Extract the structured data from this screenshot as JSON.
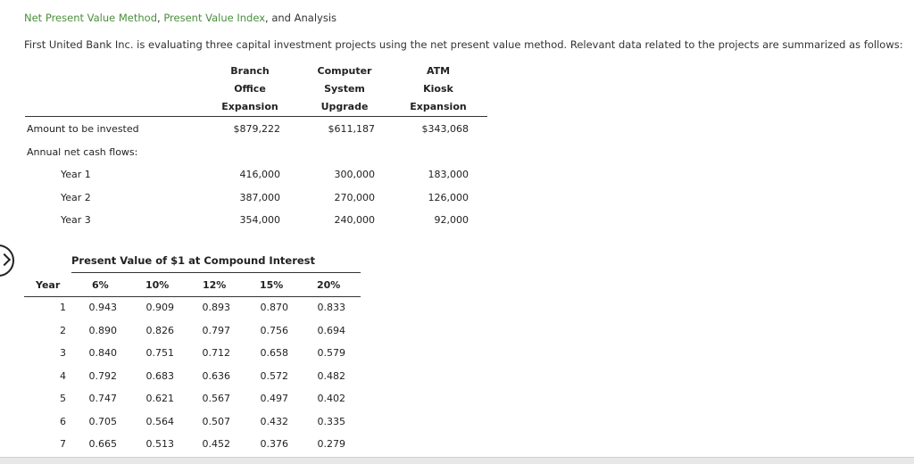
{
  "title": {
    "part1": "Net Present Value Method",
    "sep1": ", ",
    "part2": "Present Value Index",
    "sep2": ", and Analysis"
  },
  "intro": "First United Bank Inc. is evaluating three capital investment projects using the net present value method. Relevant data related to the projects are summarized as follows:",
  "projects": {
    "headers": [
      {
        "l1": "Branch",
        "l2": "Office",
        "l3": "Expansion"
      },
      {
        "l1": "Computer",
        "l2": "System",
        "l3": "Upgrade"
      },
      {
        "l1": "ATM",
        "l2": "Kiosk",
        "l3": "Expansion"
      }
    ],
    "amount_label": "Amount to be invested",
    "amounts": [
      "$879,222",
      "$611,187",
      "$343,068"
    ],
    "cash_flows_label": "Annual net cash flows:",
    "years": [
      {
        "label": "Year 1",
        "values": [
          "416,000",
          "300,000",
          "183,000"
        ]
      },
      {
        "label": "Year 2",
        "values": [
          "387,000",
          "270,000",
          "126,000"
        ]
      },
      {
        "label": "Year 3",
        "values": [
          "354,000",
          "240,000",
          "92,000"
        ]
      }
    ]
  },
  "pv_table": {
    "title": "Present Value of $1 at Compound Interest",
    "headers": [
      "Year",
      "6%",
      "10%",
      "12%",
      "15%",
      "20%"
    ],
    "rows": [
      [
        "1",
        "0.943",
        "0.909",
        "0.893",
        "0.870",
        "0.833"
      ],
      [
        "2",
        "0.890",
        "0.826",
        "0.797",
        "0.756",
        "0.694"
      ],
      [
        "3",
        "0.840",
        "0.751",
        "0.712",
        "0.658",
        "0.579"
      ],
      [
        "4",
        "0.792",
        "0.683",
        "0.636",
        "0.572",
        "0.482"
      ],
      [
        "5",
        "0.747",
        "0.621",
        "0.567",
        "0.497",
        "0.402"
      ],
      [
        "6",
        "0.705",
        "0.564",
        "0.507",
        "0.432",
        "0.335"
      ],
      [
        "7",
        "0.665",
        "0.513",
        "0.452",
        "0.376",
        "0.279"
      ]
    ]
  }
}
